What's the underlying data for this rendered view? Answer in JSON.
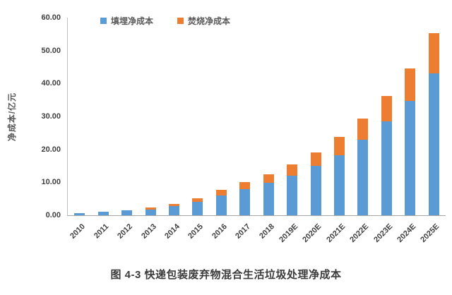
{
  "figure": {
    "caption": "图 4-3 快递包装废弃物混合生活垃圾处理净成本"
  },
  "chart_data": {
    "type": "bar",
    "stacked": true,
    "title": "",
    "xlabel": "",
    "ylabel": "净成本/亿元",
    "ylim": [
      0,
      60
    ],
    "ytick_step": 10,
    "ytick_labels": [
      "60.00",
      "50.00",
      "40.00",
      "30.00",
      "20.00",
      "10.00",
      "0.00"
    ],
    "grid": false,
    "legend_position": "top",
    "categories": [
      "2010",
      "2011",
      "2012",
      "2013",
      "2014",
      "2015",
      "2016",
      "2017",
      "2018",
      "2019E",
      "2020E",
      "2021E",
      "2022E",
      "2023E",
      "2024E",
      "2025E"
    ],
    "series": [
      {
        "name": "填埋净成本",
        "color": "#5B9BD5",
        "values": [
          0.6,
          1.0,
          1.4,
          1.8,
          2.8,
          4.1,
          6.0,
          8.0,
          9.8,
          11.9,
          15.0,
          18.3,
          23.0,
          28.4,
          34.8,
          43.0
        ]
      },
      {
        "name": "焚烧净成本",
        "color": "#ED7D31",
        "values": [
          0.1,
          0.1,
          0.2,
          0.5,
          0.6,
          1.0,
          1.7,
          2.0,
          2.7,
          3.6,
          4.1,
          5.4,
          6.3,
          7.9,
          9.8,
          12.3
        ]
      }
    ]
  },
  "colors": {
    "landfill": "#5B9BD5",
    "incineration": "#ED7D31",
    "axis_line": "#a6a6a6",
    "tick_text": "#404040"
  }
}
